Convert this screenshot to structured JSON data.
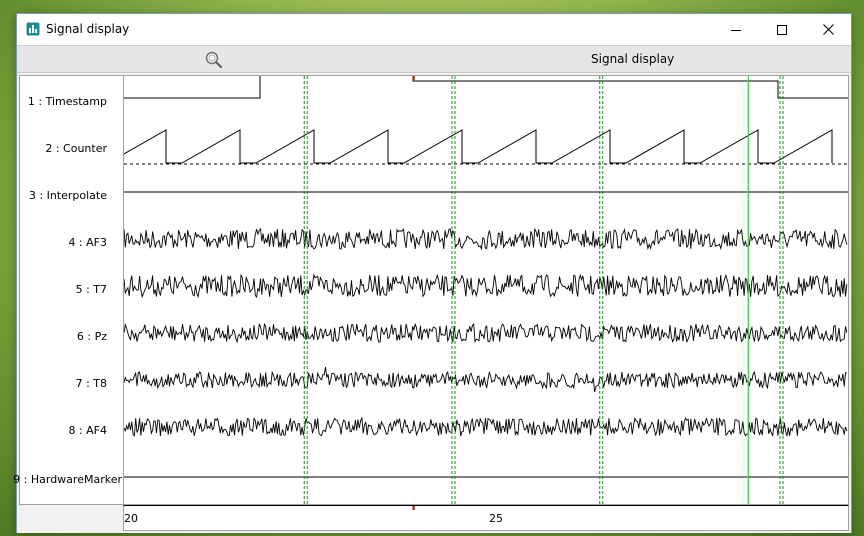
{
  "window": {
    "title": "Signal display",
    "app_icon": "chart-window-icon"
  },
  "window_controls": [
    "minimize-icon",
    "maximize-icon",
    "close-icon"
  ],
  "toolbar": {
    "zoom_icon": "magnifier-icon",
    "title": "Signal display"
  },
  "channels": [
    {
      "label": "1 : Timestamp"
    },
    {
      "label": "2 : Counter"
    },
    {
      "label": "3 : Interpolate"
    },
    {
      "label": "4 : AF3"
    },
    {
      "label": "5 : T7"
    },
    {
      "label": "6 : Pz"
    },
    {
      "label": "7 : T8"
    },
    {
      "label": "8 : AF4"
    },
    {
      "label": "9 : HardwareMarker"
    }
  ],
  "time_axis": {
    "ticks": [
      {
        "label": "20",
        "value": 20
      },
      {
        "label": "25",
        "value": 25
      }
    ]
  },
  "chart_data": {
    "type": "line",
    "x_range": [
      20,
      29.8
    ],
    "markers_dashed_green": [
      22.46,
      24.46,
      26.46,
      28.9
    ],
    "cursor_solid_green": 28.45,
    "red_marker": 23.92
  },
  "colors": {
    "trace": "#000000",
    "marker": "#1a8a1a",
    "cursor": "#33cc33",
    "red": "#cc0000"
  }
}
